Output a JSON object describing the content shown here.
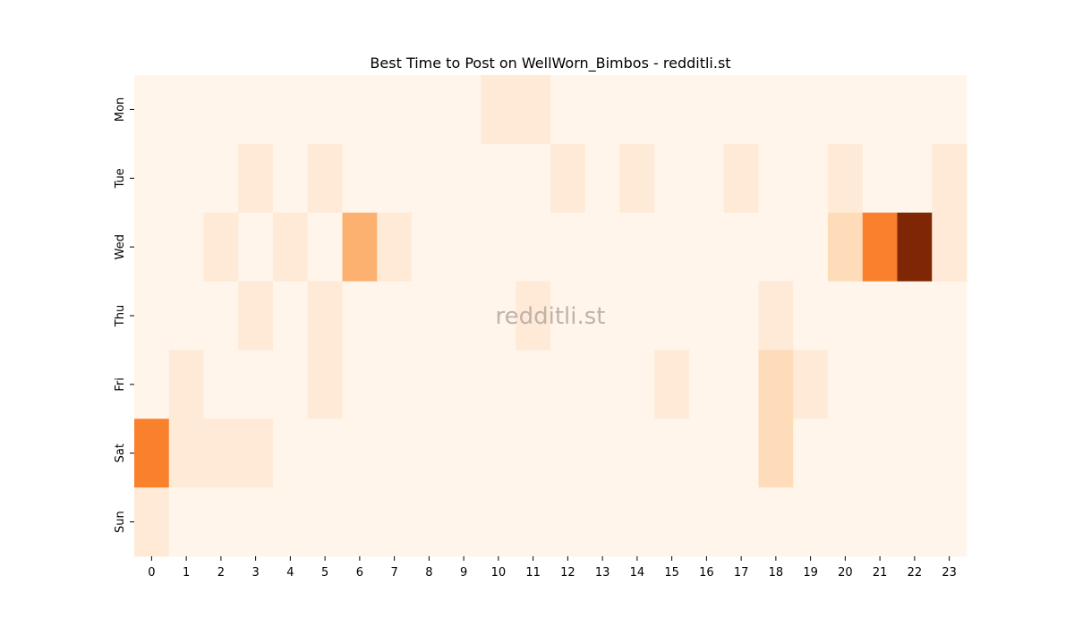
{
  "chart_data": {
    "type": "heatmap",
    "title": "Best Time to Post on WellWorn_Bimbos - redditli.st",
    "watermark": "redditli.st",
    "xlabel": "",
    "ylabel": "",
    "x_categories": [
      "0",
      "1",
      "2",
      "3",
      "4",
      "5",
      "6",
      "7",
      "8",
      "9",
      "10",
      "11",
      "12",
      "13",
      "14",
      "15",
      "16",
      "17",
      "18",
      "19",
      "20",
      "21",
      "22",
      "23"
    ],
    "y_categories": [
      "Mon",
      "Tue",
      "Wed",
      "Thu",
      "Fri",
      "Sat",
      "Sun"
    ],
    "colormap": "Oranges",
    "values": [
      [
        0,
        0,
        0,
        0,
        0,
        0,
        0,
        0,
        0,
        0,
        1,
        1,
        0,
        0,
        0,
        0,
        0,
        0,
        0,
        0,
        0,
        0,
        0,
        0
      ],
      [
        0,
        0,
        0,
        1,
        0,
        1,
        0,
        0,
        0,
        0,
        0,
        0,
        1,
        0,
        1,
        0,
        0,
        1,
        0,
        0,
        1,
        0,
        0,
        1
      ],
      [
        0,
        0,
        1,
        0,
        1,
        0,
        4,
        1,
        0,
        0,
        0,
        0,
        0,
        0,
        0,
        0,
        0,
        0,
        0,
        0,
        2,
        6,
        11,
        1
      ],
      [
        0,
        0,
        0,
        1,
        0,
        1,
        0,
        0,
        0,
        0,
        0,
        1,
        0,
        0,
        0,
        0,
        0,
        0,
        1,
        0,
        0,
        0,
        0,
        0
      ],
      [
        0,
        1,
        0,
        0,
        0,
        1,
        0,
        0,
        0,
        0,
        0,
        0,
        0,
        0,
        0,
        1,
        0,
        0,
        2,
        1,
        0,
        0,
        0,
        0
      ],
      [
        6,
        1,
        1,
        1,
        0,
        0,
        0,
        0,
        0,
        0,
        0,
        0,
        0,
        0,
        0,
        0,
        0,
        0,
        2,
        0,
        0,
        0,
        0,
        0
      ],
      [
        1,
        0,
        0,
        0,
        0,
        0,
        0,
        0,
        0,
        0,
        0,
        0,
        0,
        0,
        0,
        0,
        0,
        0,
        0,
        0,
        0,
        0,
        0,
        0
      ]
    ],
    "vmin": 0,
    "vmax": 11,
    "colorbar": false,
    "grid": false
  }
}
